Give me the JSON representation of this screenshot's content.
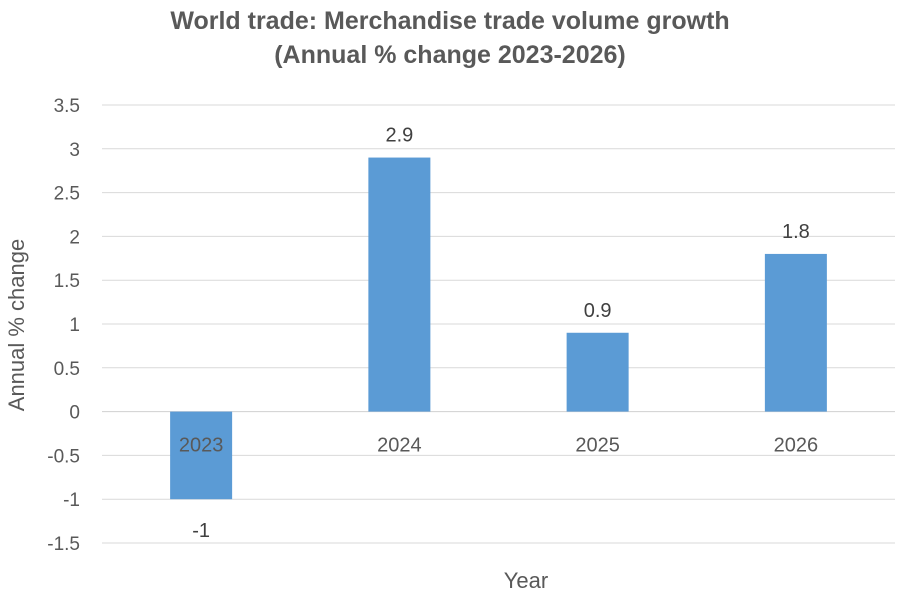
{
  "chart_data": {
    "type": "bar",
    "title": "World trade: Merchandise trade volume growth",
    "subtitle": "(Annual % change 2023-2026)",
    "xlabel": "Year",
    "ylabel": "Annual % change",
    "categories": [
      "2023",
      "2024",
      "2025",
      "2026"
    ],
    "values": [
      -1,
      2.9,
      0.9,
      1.8
    ],
    "data_labels": [
      "-1",
      "2.9",
      "0.9",
      "1.8"
    ],
    "ylim": [
      -1.5,
      3.5
    ],
    "yticks": [
      -1.5,
      -1,
      -0.5,
      0,
      0.5,
      1,
      1.5,
      2,
      2.5,
      3,
      3.5
    ],
    "ytick_labels": [
      "-1.5",
      "-1",
      "-0.5",
      "0",
      "0.5",
      "1",
      "1.5",
      "2",
      "2.5",
      "3",
      "3.5"
    ],
    "grid": true,
    "legend": "none",
    "bar_color": "#5B9BD5",
    "grid_color": "#D9D9D9",
    "text_color": "#595959"
  }
}
